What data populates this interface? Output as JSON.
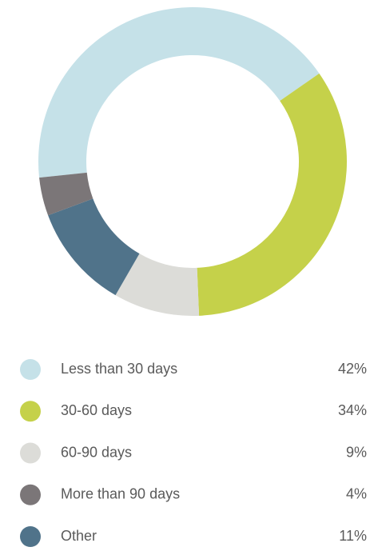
{
  "chart_data": {
    "type": "donut",
    "categories": [
      "Less than 30 days",
      "30-60 days",
      "60-90 days",
      "More than 90 days",
      "Other"
    ],
    "values": [
      42,
      34,
      9,
      4,
      11
    ],
    "value_labels": [
      "42%",
      "34%",
      "9%",
      "4%",
      "11%"
    ],
    "colors": [
      "#c5e1e8",
      "#c5d14a",
      "#dcdcd8",
      "#7b7678",
      "#50738a"
    ]
  }
}
